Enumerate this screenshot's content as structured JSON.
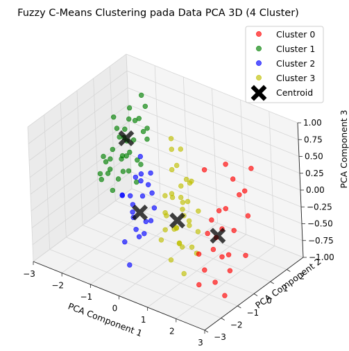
{
  "chart_data": {
    "type": "scatter",
    "title": "Fuzzy C-Means Clustering pada Data PCA 3D (4 Cluster)",
    "xlabel": "PCA Component 1",
    "ylabel": "PCA Component 2",
    "zlabel": "PCA Component 3",
    "xlim": [
      -3,
      3
    ],
    "ylim": [
      -3,
      3
    ],
    "zlim": [
      -1,
      1
    ],
    "xticks": [
      "−3",
      "−2",
      "−1",
      "0",
      "1",
      "2",
      "3"
    ],
    "yticks": [
      "−3",
      "−2",
      "−1",
      "0",
      "1",
      "2"
    ],
    "zticks": [
      "−1.00",
      "−0.75",
      "−0.50",
      "−0.25",
      "0.00",
      "0.25",
      "0.50",
      "0.75",
      "1.00"
    ],
    "grid": true,
    "legend_position": "top-right",
    "series": [
      {
        "name": "Cluster 0",
        "color": "#ff0000",
        "points": [
          [
            1.9,
            -0.8,
            0.8
          ],
          [
            2.0,
            0.3,
            0.7
          ],
          [
            2.3,
            0.2,
            0.55
          ],
          [
            2.6,
            0.8,
            0.65
          ],
          [
            2.5,
            0.2,
            0.35
          ],
          [
            2.3,
            -0.3,
            0.2
          ],
          [
            2.0,
            -0.2,
            0.1
          ],
          [
            1.9,
            -0.5,
            0.0
          ],
          [
            2.2,
            -0.4,
            -0.1
          ],
          [
            2.6,
            0.5,
            0.0
          ],
          [
            1.8,
            -0.6,
            -0.2
          ],
          [
            2.1,
            -0.8,
            -0.35
          ],
          [
            2.4,
            -0.4,
            -0.45
          ],
          [
            2.2,
            0.3,
            -0.25
          ],
          [
            1.7,
            -1.0,
            -0.45
          ],
          [
            2.0,
            -1.2,
            -0.6
          ],
          [
            2.3,
            -1.1,
            -0.75
          ],
          [
            2.6,
            -0.7,
            -0.6
          ],
          [
            2.1,
            -0.3,
            -0.55
          ],
          [
            1.9,
            -1.4,
            -0.8
          ],
          [
            2.5,
            -0.9,
            -0.95
          ],
          [
            2.7,
            0.1,
            -0.5
          ],
          [
            2.4,
            0.7,
            0.3
          ],
          [
            1.8,
            -0.1,
            -0.35
          ]
        ]
      },
      {
        "name": "Cluster 1",
        "color": "#008000",
        "points": [
          [
            -1.7,
            0.9,
            0.8
          ],
          [
            -1.5,
            1.3,
            0.95
          ],
          [
            -1.8,
            1.0,
            0.6
          ],
          [
            -2.0,
            0.6,
            0.5
          ],
          [
            -1.4,
            0.7,
            0.7
          ],
          [
            -1.6,
            0.5,
            0.4
          ],
          [
            -2.1,
            0.9,
            0.3
          ],
          [
            -1.3,
            1.2,
            0.35
          ],
          [
            -1.9,
            1.4,
            0.2
          ],
          [
            -2.3,
            0.8,
            0.1
          ],
          [
            -1.7,
            0.3,
            0.15
          ],
          [
            -1.2,
            0.6,
            0.1
          ],
          [
            -2.2,
            1.2,
            -0.05
          ],
          [
            -2.5,
            0.7,
            -0.1
          ],
          [
            -1.9,
            0.4,
            -0.2
          ],
          [
            -1.5,
            0.8,
            -0.25
          ],
          [
            -2.8,
            0.9,
            -0.45
          ],
          [
            -2.6,
            1.1,
            -0.3
          ],
          [
            -2.0,
            0.2,
            -0.35
          ],
          [
            -1.6,
            0.2,
            0.0
          ],
          [
            -2.4,
            0.4,
            0.05
          ],
          [
            -1.8,
            1.6,
            0.5
          ],
          [
            -1.3,
            1.0,
            0.5
          ],
          [
            -2.1,
            0.6,
            0.65
          ],
          [
            -2.7,
            1.3,
            -0.2
          ],
          [
            -1.4,
            0.3,
            0.3
          ],
          [
            -2.3,
            1.5,
            0.15
          ],
          [
            -1.1,
            0.9,
            0.6
          ],
          [
            -2.0,
            1.1,
            0.0
          ],
          [
            -1.7,
            0.7,
            -0.1
          ],
          [
            -2.2,
            0.3,
            -0.15
          ],
          [
            -1.5,
            1.5,
            0.75
          ],
          [
            -2.9,
            1.0,
            -0.4
          ],
          [
            -1.2,
            0.4,
            0.2
          ],
          [
            -1.9,
            0.9,
            0.45
          ]
        ]
      },
      {
        "name": "Cluster 3",
        "color": "#bfbf00",
        "points": [
          [
            0.4,
            -0.2,
            0.9
          ],
          [
            0.3,
            0.5,
            0.6
          ],
          [
            0.5,
            -0.1,
            0.5
          ],
          [
            0.8,
            -0.4,
            0.3
          ],
          [
            0.2,
            0.1,
            0.35
          ],
          [
            0.7,
            0.3,
            0.2
          ],
          [
            0.4,
            -0.3,
            0.1
          ],
          [
            0.1,
            -0.2,
            0.0
          ],
          [
            0.9,
            -0.2,
            0.05
          ],
          [
            0.6,
            0.0,
            -0.05
          ],
          [
            0.3,
            0.4,
            -0.1
          ],
          [
            1.1,
            -0.5,
            -0.15
          ],
          [
            0.2,
            -0.4,
            -0.2
          ],
          [
            0.7,
            -0.6,
            -0.3
          ],
          [
            0.5,
            0.2,
            -0.3
          ],
          [
            0.0,
            0.0,
            -0.35
          ],
          [
            0.9,
            0.4,
            -0.2
          ],
          [
            0.4,
            -0.1,
            -0.45
          ],
          [
            1.0,
            -0.8,
            -0.5
          ],
          [
            0.6,
            -0.3,
            -0.6
          ],
          [
            0.2,
            -0.7,
            -0.55
          ],
          [
            0.8,
            0.1,
            -0.7
          ],
          [
            0.4,
            -0.5,
            -0.85
          ],
          [
            1.2,
            -0.3,
            -0.65
          ],
          [
            0.3,
            0.2,
            -0.75
          ],
          [
            0.9,
            -0.6,
            -0.95
          ],
          [
            0.5,
            0.5,
            -0.5
          ],
          [
            1.0,
            -0.1,
            0.35
          ],
          [
            0.1,
            0.3,
            0.6
          ],
          [
            0.7,
            -0.2,
            -0.1
          ],
          [
            0.4,
            0.6,
            0.15
          ],
          [
            1.1,
            0.0,
            -0.4
          ],
          [
            0.8,
            -0.9,
            -0.25
          ],
          [
            0.3,
            -0.6,
            -0.4
          ],
          [
            0.0,
            0.4,
            -0.15
          ]
        ]
      },
      {
        "name": "Cluster 2",
        "color": "#0000ff",
        "points": [
          [
            -0.6,
            -0.4,
            0.5
          ],
          [
            -0.5,
            0.0,
            0.2
          ],
          [
            -0.3,
            -0.5,
            0.15
          ],
          [
            -0.8,
            -0.1,
            0.05
          ],
          [
            -0.4,
            -0.7,
            0.0
          ],
          [
            -0.9,
            -0.6,
            -0.1
          ],
          [
            -0.6,
            0.2,
            -0.15
          ],
          [
            -0.3,
            -0.2,
            -0.25
          ],
          [
            -1.0,
            -0.3,
            -0.3
          ],
          [
            -0.7,
            -0.8,
            -0.35
          ],
          [
            -0.5,
            -0.4,
            -0.45
          ],
          [
            -1.2,
            0.0,
            -0.5
          ],
          [
            -0.4,
            -1.0,
            -0.55
          ],
          [
            -0.8,
            -0.5,
            -0.6
          ],
          [
            -1.1,
            -0.7,
            -0.8
          ],
          [
            -0.6,
            -1.3,
            -0.95
          ],
          [
            -0.9,
            0.1,
            0.1
          ],
          [
            -0.2,
            -0.6,
            -0.35
          ],
          [
            -1.3,
            -0.4,
            -0.2
          ],
          [
            -0.7,
            -0.2,
            -0.7
          ],
          [
            -0.5,
            -0.9,
            0.3
          ],
          [
            -1.0,
            -0.9,
            -0.05
          ]
        ]
      }
    ],
    "centroids": {
      "name": "Centroid",
      "color": "#000000",
      "points": [
        [
          2.1,
          -0.5,
          -0.2
        ],
        [
          -1.8,
          0.8,
          0.35
        ],
        [
          0.5,
          -0.2,
          -0.3
        ],
        [
          -0.7,
          -0.4,
          -0.35
        ]
      ]
    }
  }
}
